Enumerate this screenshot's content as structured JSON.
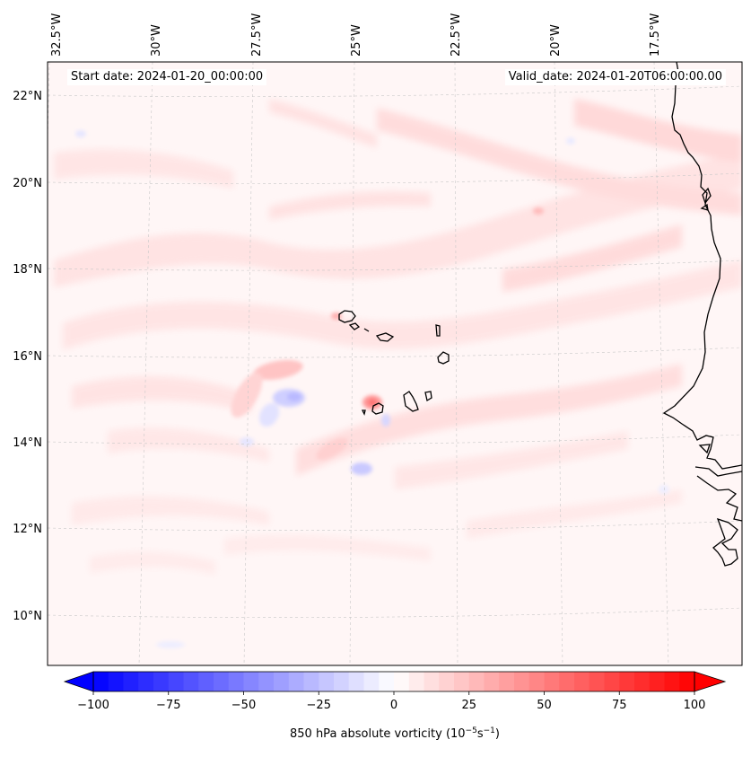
{
  "header": {
    "start_label": "Start date: 2024-01-20_00:00:00",
    "valid_label": "Valid_date: 2024-01-20T06:00:00.00"
  },
  "map": {
    "lon_labels": [
      "32.5°W",
      "30°W",
      "27.5°W",
      "25°W",
      "22.5°W",
      "20°W",
      "17.5°W"
    ],
    "lat_labels": [
      "22°N",
      "20°N",
      "18°N",
      "16°N",
      "14°N",
      "12°N",
      "10°N"
    ],
    "features": [
      "cape-verde-islands",
      "west-africa-coastline"
    ]
  },
  "colorbar": {
    "label_main": "850 hPa absolute vorticity (10",
    "label_exp1": "−5",
    "label_mid": "s",
    "label_exp2": "−1",
    "label_end": ")",
    "min": -100,
    "max": 100,
    "ticks": [
      "−100",
      "−75",
      "−50",
      "−25",
      "0",
      "25",
      "50",
      "75",
      "100"
    ],
    "colors": {
      "negative": "#0000ff",
      "zero": "#ffffff",
      "positive": "#ff0000"
    },
    "extend": "both"
  }
}
